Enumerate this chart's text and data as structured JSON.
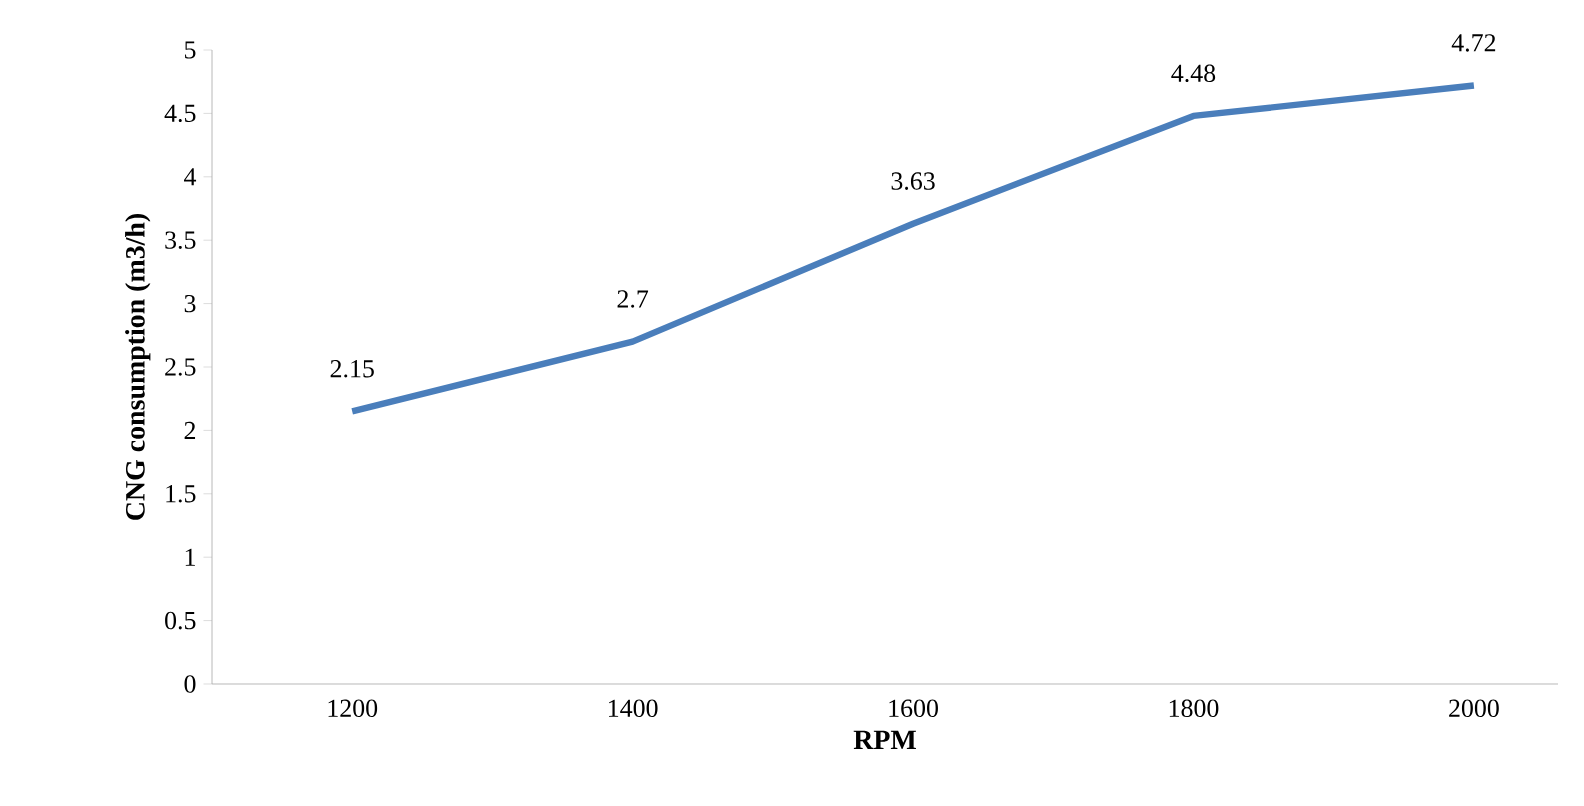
{
  "chart_data": {
    "type": "line",
    "xlabel": "RPM",
    "ylabel": "CNG consumption (m3/h)",
    "categories": [
      "1200",
      "1400",
      "1600",
      "1800",
      "2000"
    ],
    "values": [
      2.15,
      2.7,
      3.63,
      4.48,
      4.72
    ],
    "color": "#4a7ebb",
    "data_labels": true,
    "grid": false,
    "marker": "none",
    "line_style": "solid",
    "ylim": [
      0,
      5
    ],
    "yticks": [
      0,
      0.5,
      1,
      1.5,
      2,
      2.5,
      3,
      3.5,
      4,
      4.5,
      5
    ]
  }
}
